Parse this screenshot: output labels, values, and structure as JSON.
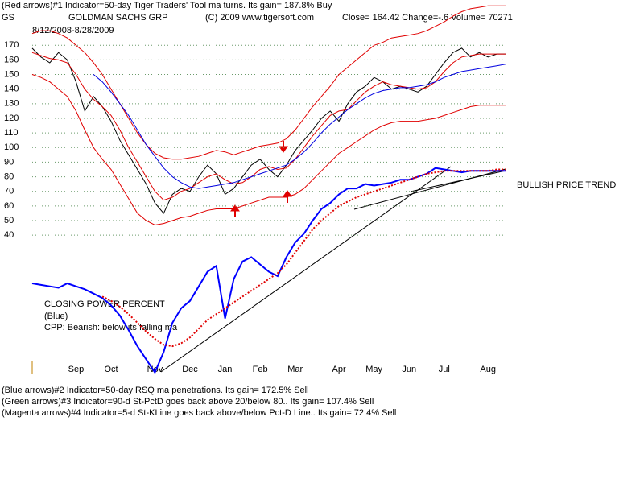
{
  "chart_data": {
    "type": "line",
    "title": "(Red arrows)#1 Indicator=50-day Tiger Traders' Tool ma turns. Its gain= 187.8% Buy",
    "subtitle": "GOLDMAN SACHS GRP",
    "symbol": "GS",
    "copyright": "(C) 2009 www.tigersoft.com",
    "quote": "Close=  164.42 Change=-.6 Volume= 70271",
    "date_range": "8/12/2008-8/28/2009",
    "annotations": [
      "BULLISH PRICE TREND",
      "CLOSING POWER PERCENT",
      "(Blue)",
      "CPP: Bearish: below its falling ma"
    ],
    "footer": [
      "(Blue arrows)#2 Indicator=50-day RSQ ma penetrations. Its gain= 172.5% Sell",
      "(Green arrows)#3 Indicator=90-d St-PctD goes back above 20/below 80.. Its gain= 107.4% Sell",
      "(Magenta arrows)#4 Indicator=5-d St-KLine goes back above/below Pct-D Line.. Its gain= 72.4% Sell"
    ],
    "categories": [
      null,
      null,
      null,
      null,
      null,
      "Sep",
      null,
      null,
      null,
      "Oct",
      null,
      null,
      null,
      null,
      "Nov",
      null,
      null,
      null,
      "Dec",
      null,
      null,
      null,
      "Jan",
      null,
      null,
      null,
      "Feb",
      null,
      null,
      null,
      "Mar",
      null,
      null,
      null,
      null,
      "Apr",
      null,
      null,
      null,
      "May",
      null,
      null,
      null,
      "Jun",
      null,
      null,
      null,
      "Jul",
      null,
      null,
      null,
      null,
      "Aug",
      null,
      null
    ],
    "series": [
      {
        "color": "#000000",
        "values": [
          168,
          162,
          158,
          165,
          160,
          145,
          125,
          135,
          128,
          118,
          105,
          95,
          85,
          75,
          62,
          55,
          68,
          72,
          70,
          80,
          88,
          82,
          68,
          72,
          80,
          88,
          92,
          85,
          80,
          88,
          98,
          105,
          112,
          120,
          125,
          118,
          130,
          138,
          142,
          148,
          145,
          140,
          142,
          140,
          138,
          142,
          150,
          158,
          165,
          168,
          162,
          165,
          162,
          164,
          164
        ]
      },
      {
        "color": "#e00000",
        "values": [
          178,
          180,
          180,
          178,
          175,
          170,
          165,
          158,
          150,
          140,
          130,
          120,
          110,
          102,
          96,
          93,
          92,
          92,
          93,
          94,
          96,
          98,
          97,
          95,
          97,
          99,
          101,
          102,
          103,
          106,
          112,
          120,
          128,
          135,
          142,
          150,
          155,
          160,
          165,
          170,
          172,
          175,
          176,
          177,
          178,
          180,
          183,
          186,
          190,
          193,
          195,
          196,
          197,
          197,
          197
        ]
      },
      {
        "color": "#e00000",
        "values": [
          165,
          163,
          161,
          160,
          158,
          150,
          140,
          133,
          128,
          122,
          112,
          100,
          90,
          80,
          70,
          64,
          66,
          70,
          72,
          76,
          80,
          82,
          78,
          75,
          76,
          80,
          85,
          87,
          85,
          86,
          92,
          100,
          108,
          115,
          122,
          125,
          126,
          132,
          138,
          142,
          145,
          143,
          142,
          141,
          140,
          141,
          145,
          152,
          158,
          162,
          163,
          164,
          164,
          164,
          164
        ]
      },
      {
        "color": "#e00000",
        "values": [
          150,
          148,
          145,
          140,
          135,
          125,
          112,
          100,
          92,
          85,
          75,
          65,
          55,
          50,
          47,
          48,
          50,
          52,
          53,
          55,
          57,
          58,
          58,
          58,
          60,
          62,
          64,
          66,
          66,
          66,
          68,
          72,
          78,
          84,
          90,
          96,
          100,
          104,
          108,
          112,
          115,
          117,
          118,
          118,
          118,
          119,
          120,
          122,
          124,
          126,
          128,
          129,
          129,
          129,
          129
        ]
      },
      {
        "color": "#0000e0",
        "values": [
          null,
          null,
          null,
          null,
          null,
          null,
          null,
          150,
          145,
          138,
          130,
          122,
          112,
          102,
          94,
          86,
          80,
          76,
          73,
          72,
          73,
          74,
          75,
          76,
          78,
          80,
          82,
          84,
          86,
          88,
          92,
          97,
          103,
          110,
          116,
          121,
          126,
          130,
          134,
          137,
          139,
          140,
          141,
          141,
          142,
          143,
          145,
          148,
          150,
          152,
          153,
          154,
          155,
          156,
          157
        ]
      },
      {
        "color": "#0000ff",
        "values": [
          7,
          6,
          5,
          4,
          7,
          5,
          3,
          0,
          -3,
          -8,
          -15,
          -25,
          -36,
          -45,
          -54,
          -40,
          -20,
          -10,
          -5,
          5,
          15,
          19,
          -17,
          10,
          22,
          25,
          20,
          15,
          12,
          25,
          35,
          41,
          50,
          58,
          62,
          68,
          72,
          72,
          75,
          74,
          75,
          76,
          78,
          78,
          80,
          82,
          86,
          85,
          84,
          83,
          84,
          84,
          84,
          84,
          84
        ]
      },
      {
        "color": "#e00000",
        "dotted": true,
        "values": [
          null,
          null,
          null,
          null,
          null,
          null,
          null,
          null,
          -2,
          -5,
          -9,
          -14,
          -20,
          -26,
          -31,
          -35,
          -36,
          -34,
          -30,
          -24,
          -18,
          -14,
          -10,
          -6,
          -2,
          2,
          6,
          10,
          14,
          20,
          28,
          36,
          44,
          50,
          55,
          60,
          63,
          66,
          68,
          70,
          72,
          74,
          76,
          78,
          80,
          82,
          83,
          84,
          84,
          84,
          84,
          84,
          84,
          85,
          85
        ]
      }
    ],
    "ylim": [
      -58,
      201
    ],
    "yticks": [
      40,
      50,
      60,
      70,
      80,
      90,
      100,
      110,
      120,
      130,
      140,
      150,
      160,
      170
    ],
    "grid": true,
    "grid_color": "#6a9a6a"
  }
}
